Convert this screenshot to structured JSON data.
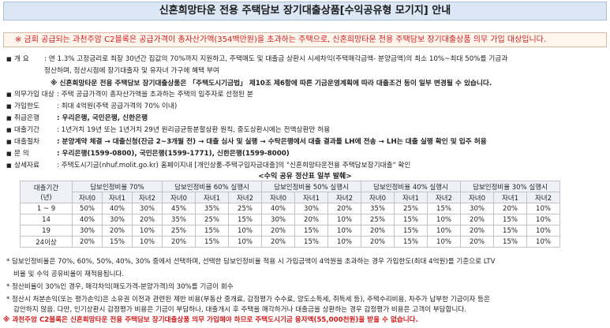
{
  "title": "신혼희망타운 전용 주택담보 장기대출상품[수익공유형 모기지] 안내",
  "notice": "※ 금회 공급되는 과천주암 C2블록은 공급가격이 총자산가액(354백만원)을 초과하는 주택으로, 신혼희망타운 전용 주택담보 장기대출상품 의무 가입 대상입니다.",
  "overview": {
    "label": "개   요",
    "line1": ": 연 1.3% 고정금리로 최장 30년간 집값의 70%까지 지원하고, 주택매도 및 대출금 상환시 시세차익(주택매각금액- 분양금액)의 최소 10%~최대 50%를 기금과",
    "line2": "정산하며, 정산시점에 장기대출자 및 유자녀 가구에 혜택 부여",
    "line3": "※ 신혼희망타운 전용 주택담보 장기대출상품은 「주택도시기금법」 제10조 제6항에 따른 기금운영계획에 따라 대출조건 등이 일부 변경될 수 있습니다."
  },
  "items": [
    {
      "label": "의무가입 대상",
      "text": ": 주택 공급가격이 총자산가액을 초과하는 주택의 입주자로 선정된 분",
      "bold": false
    },
    {
      "label": "가입한도",
      "text": ": 최대 4억원(주택 공급가격의 70% 이내)",
      "bold": false
    },
    {
      "label": "취급은행",
      "text": ": 우리은행, 국민은행, 신한은행",
      "bold": true
    },
    {
      "label": "대출기간",
      "text": ": 1년거치 19년 또는 1년거치 29년 원리금균등분할상환 원칙, 중도상환시에는 전액상환만 허용",
      "bold": false
    },
    {
      "label": "대출절차",
      "text": ": 분양계약 체결 → 대출신청(잔금 2~3개월 전) → 대출 심사 및 실행 → 수탁은행에서 대출 결과를 LH에 전송 → LH는 대출 실행 확인 및 입주 허용",
      "bold": true
    },
    {
      "label": "문      의",
      "text": ": 우리은행(1599-0800), 국민은행(1599-1771), 신한은행(1599-8000)",
      "bold": true
    },
    {
      "label": "상세자료",
      "text": ": 주택도시기금(nhuf.molit.go.kr) 홈페이지내 [개인상품-주택구입자금대출]의 \"신혼희망타운전용 주택담보장기대출\" 확인",
      "bold": false
    }
  ],
  "table": {
    "caption": "<수익 공유 정산표 일부 발췌>",
    "period_header": "대출기간",
    "period_sub": "(년)",
    "groups": [
      "담보인정비율 70%",
      "담보인정비율 60% 실행시",
      "담보인정비율 50% 실행시",
      "담보인정비율 40% 실행시",
      "담보인정비율 30% 실행시"
    ],
    "subheaders": [
      "자녀0",
      "자녀1",
      "자녀2"
    ],
    "rows": [
      {
        "period": "1 ~ 9",
        "values": [
          "50%",
          "40%",
          "30%",
          "45%",
          "35%",
          "25%",
          "40%",
          "30%",
          "20%",
          "35%",
          "25%",
          "15%",
          "30%",
          "20%",
          "10%"
        ]
      },
      {
        "period": "14",
        "values": [
          "40%",
          "30%",
          "20%",
          "35%",
          "25%",
          "15%",
          "30%",
          "20%",
          "10%",
          "25%",
          "15%",
          "10%",
          "20%",
          "15%",
          "10%"
        ]
      },
      {
        "period": "19",
        "values": [
          "30%",
          "20%",
          "10%",
          "25%",
          "15%",
          "10%",
          "20%",
          "15%",
          "10%",
          "20%",
          "15%",
          "10%",
          "20%",
          "15%",
          "10%"
        ]
      },
      {
        "period": "24이상",
        "values": [
          "20%",
          "15%",
          "10%",
          "20%",
          "15%",
          "10%",
          "20%",
          "15%",
          "10%",
          "20%",
          "15%",
          "10%",
          "20%",
          "15%",
          "10%"
        ]
      }
    ]
  },
  "notes": {
    "n1a": "* 담보인정비율은 70%, 60%, 50%, 40%, 30% 중에서 선택하며, 선택한 담보인정비율 적용 시 가입금액이 4억원을 초과하는 경우 가입한도(최대 4억원)를 기준으로 LTV",
    "n1b": "비율 및 수익 공유비율이 재적용됩니다.",
    "n2": "* 정산비율이 30%인 경우, 매각차익(매도가격-분양가격)의 30%를 기금이 회수",
    "n3a": "* 정산시 처분손익(또는 평가손익)은 소유권 이전과 관련된 제반 비용(부동산 중개료, 감정평가 수수료, 양도소득세, 취득세 등), 주택수리비용, 차주가 납부한 기금이자 등은",
    "n3b": "감안하지 않음. 다만, 인기상환시 감정평가 비용은 기금이 부담하나, 대출개시 후 주택을 매각하거나 대출금을 상환하는 경우 감정평가 비용은 고객이 부담합니다.",
    "final": "※ 과천주암 C2블록은 신혼희망타운 전용 주택담보 장기대출상품 의무 가입해야 하므로 주택도시기금 융자액(55,000천원)을 받을 수 없습니다."
  },
  "colors": {
    "title_bg": "#dbe7f5",
    "notice_text": "#d11a1a",
    "table_header_bg": "#eef2f8"
  }
}
